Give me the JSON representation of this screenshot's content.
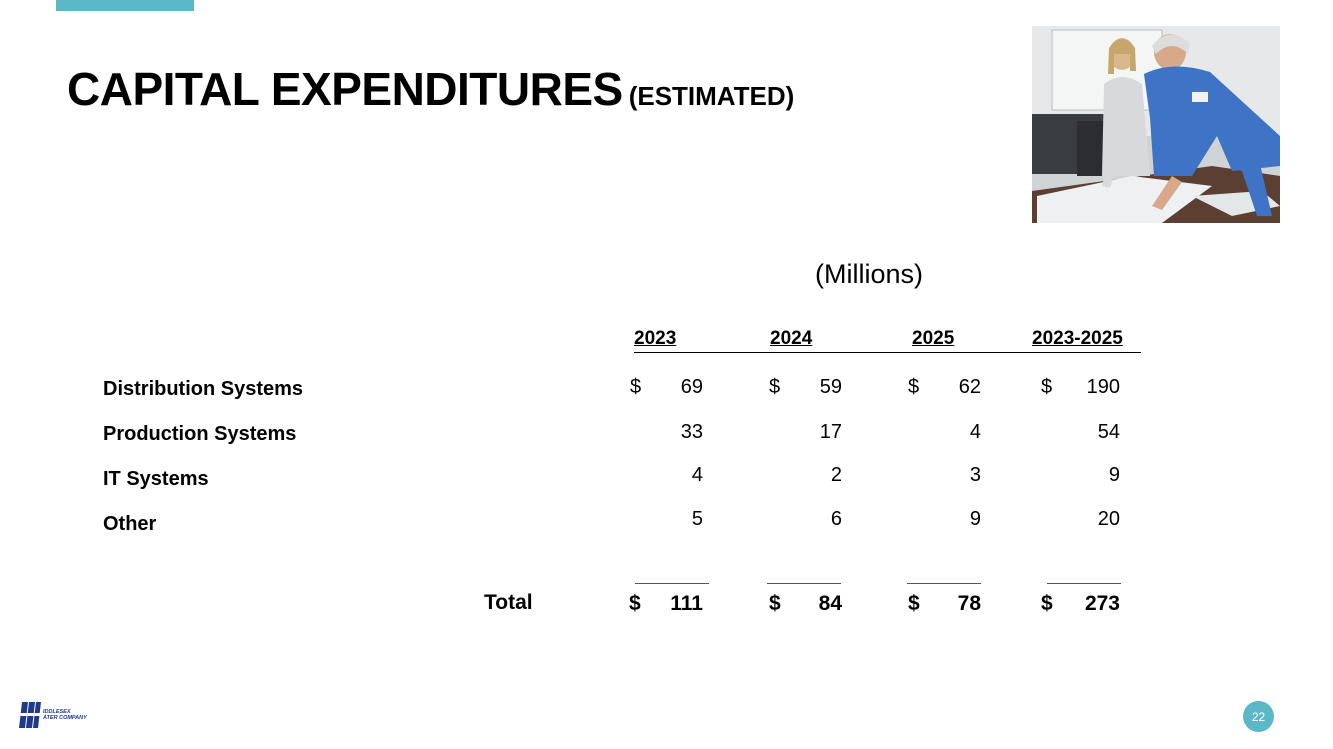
{
  "slide": {
    "title": "CAPITAL EXPENDITURES",
    "subtitle": "(ESTIMATED)",
    "units": "(Millions)",
    "page_number": "22",
    "accent_color": "#5bb8c6"
  },
  "photo": {
    "icon": "photo-two-people-reviewing-plans"
  },
  "logo": {
    "line1": "IDDLESEX",
    "line2": "ATER COMPANY",
    "color": "#1f3a8a"
  },
  "table": {
    "columns": [
      "2023",
      "2024",
      "2025",
      "2023-2025"
    ],
    "currency": "$",
    "rows": [
      {
        "label": "Distribution Systems",
        "values": [
          "69",
          "59",
          "62",
          "190"
        ]
      },
      {
        "label": "Production Systems",
        "values": [
          "33",
          "17",
          "4",
          "54"
        ]
      },
      {
        "label": "IT Systems",
        "values": [
          "4",
          "2",
          "3",
          "9"
        ]
      },
      {
        "label": "Other",
        "values": [
          "5",
          "6",
          "9",
          "20"
        ]
      }
    ],
    "total": {
      "label": "Total",
      "values": [
        "111",
        "84",
        "78",
        "273"
      ]
    }
  }
}
